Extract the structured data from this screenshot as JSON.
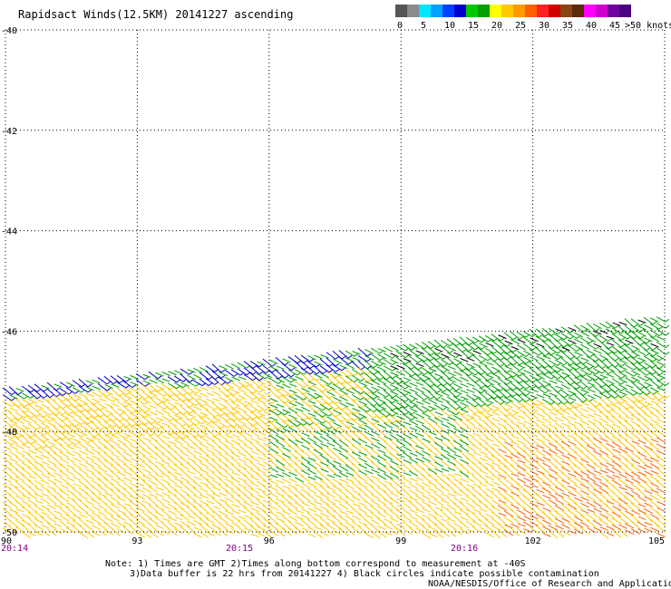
{
  "title": "Rapidsact Winds(12.5KM) 20141227 ascending",
  "colorbar": {
    "unit_label": ">50 knots",
    "tick_labels": [
      "0",
      "5",
      "10",
      "15",
      "20",
      "25",
      "30",
      "35",
      "40",
      "45"
    ],
    "colors": [
      "#555555",
      "#8a8a8a",
      "#00e5ff",
      "#00a0ff",
      "#0040ff",
      "#0000c8",
      "#00c800",
      "#00a000",
      "#ffff00",
      "#ffc800",
      "#ff9a00",
      "#ff6000",
      "#ff2020",
      "#d00000",
      "#8b4513",
      "#5a2a0a",
      "#ff00ff",
      "#d000d0",
      "#7000a0",
      "#4a0080"
    ]
  },
  "map": {
    "lat_labels": [
      "-40",
      "-42",
      "-44",
      "-46",
      "-48",
      "-50"
    ],
    "lon_labels": [
      "90",
      "93",
      "96",
      "99",
      "102",
      "105"
    ],
    "time_labels": [
      "20:14",
      "20:15",
      "20:16"
    ],
    "time_color": "#800080",
    "grid": "dotted"
  },
  "notes": {
    "line1": "Note: 1) Times are GMT 2)Times along bottom correspond to measurement at -40S",
    "line2": "3)Data buffer is 22 hrs from 20141227 4) Black circles indicate possible contamination",
    "credit": "NOAA/NESDIS/Office of Research and Applications"
  },
  "wind_field": {
    "description_colors": {
      "calm": "#0000c8",
      "light": "#00a000",
      "moderate": "#ffc800",
      "strong": "#ff6000",
      "contaminated": "#000000"
    }
  }
}
